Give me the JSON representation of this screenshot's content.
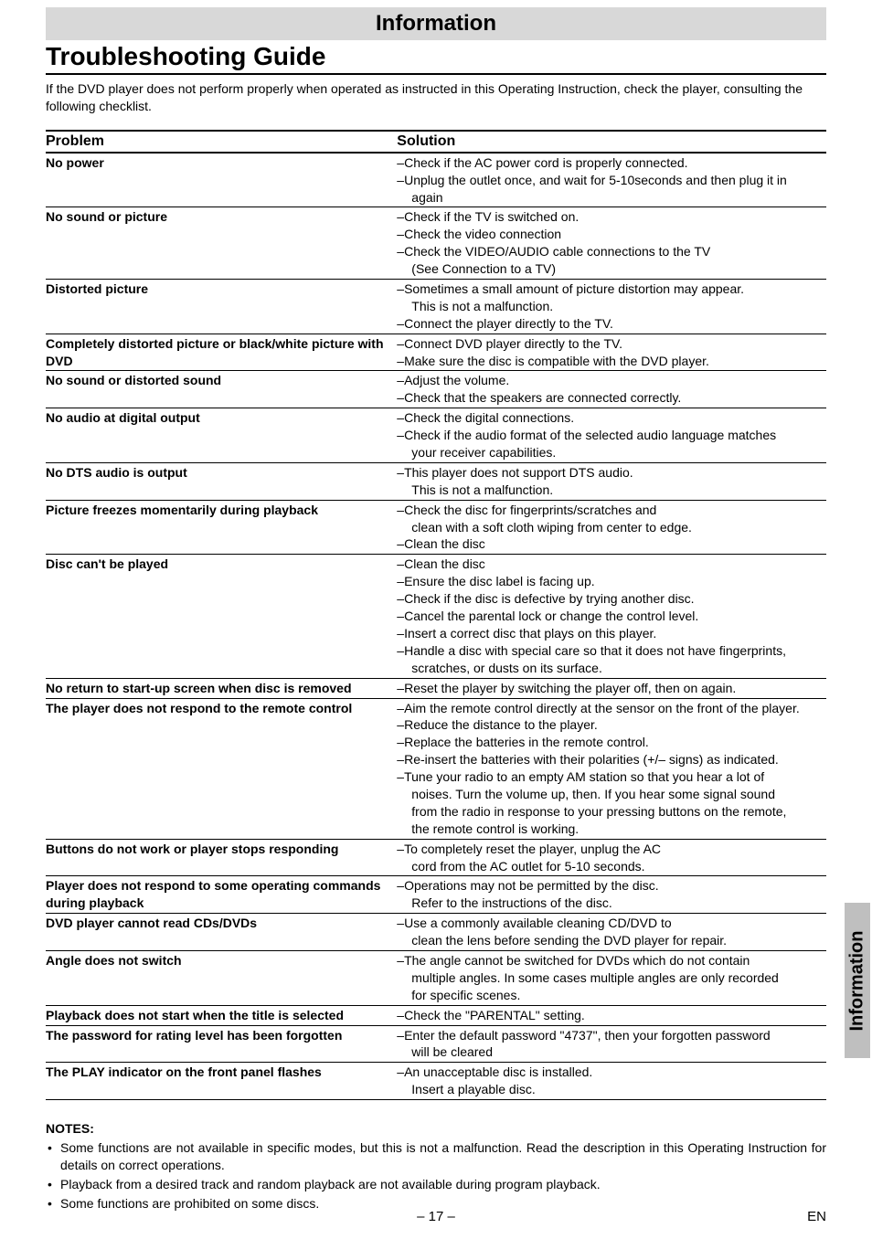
{
  "header_bar": "Information",
  "title": "Troubleshooting Guide",
  "intro": "If the DVD player does not perform properly when operated as instructed in this Operating Instruction, check the player, consulting the following checklist.",
  "table": {
    "col_problem": "Problem",
    "col_solution": "Solution",
    "rows": [
      {
        "problem": "No power",
        "solutions": [
          "–Check if the AC power cord is properly connected.",
          "–Unplug the outlet once, and wait for 5-10seconds and then plug it in",
          "  again"
        ]
      },
      {
        "problem": "No sound or picture",
        "solutions": [
          "–Check if the TV is switched on.",
          "–Check the video connection",
          "–Check the VIDEO/AUDIO cable connections to the TV",
          "  (See Connection to a TV)"
        ]
      },
      {
        "problem": "Distorted picture",
        "solutions": [
          "–Sometimes a small amount of picture distortion may appear.",
          "  This is not a malfunction.",
          "–Connect the player directly to the TV."
        ]
      },
      {
        "problem": "Completely distorted picture or black/white picture with DVD",
        "solutions": [
          "–Connect DVD player directly to the TV.",
          "–Make sure the disc is compatible with the DVD player."
        ]
      },
      {
        "problem": "No sound or distorted sound",
        "solutions": [
          "–Adjust the volume.",
          "–Check that the speakers are connected correctly."
        ]
      },
      {
        "problem": "No audio at digital output",
        "solutions": [
          "–Check the digital connections.",
          "–Check if the audio format of the selected audio language matches",
          "  your receiver capabilities."
        ]
      },
      {
        "problem": "No DTS audio is output",
        "solutions": [
          "–This player does not support DTS audio.",
          "  This is not a malfunction."
        ]
      },
      {
        "problem": "Picture freezes momentarily during playback",
        "solutions": [
          "–Check the disc for fingerprints/scratches and",
          "  clean with a soft cloth wiping from center to edge.",
          "–Clean the disc"
        ]
      },
      {
        "problem": "Disc can't be played",
        "solutions": [
          "–Clean the disc",
          "–Ensure the disc label is facing up.",
          "–Check if the disc is defective by trying another disc.",
          "–Cancel the parental lock or change the control level.",
          "–Insert a correct disc that plays on this player.",
          "–Handle a disc with special care so that it does not have fingerprints,",
          "  scratches, or dusts on its surface."
        ]
      },
      {
        "problem": "No return to start-up screen when disc is removed",
        "solutions": [
          "–Reset the player by switching the player off, then on again."
        ]
      },
      {
        "problem": "The player does not respond to the remote control",
        "solutions": [
          "–Aim the remote control directly at the sensor on the front of the player.",
          "–Reduce the distance to the player.",
          "–Replace the batteries in the remote control.",
          "–Re-insert the batteries with their polarities (+/– signs) as indicated.",
          "–Tune your radio to an empty AM station so that you hear a lot of",
          "  noises. Turn the volume up, then. If you hear some signal sound",
          "  from the radio in response to your pressing buttons on the remote,",
          "  the remote control is working."
        ]
      },
      {
        "problem": "Buttons do not work or player stops responding",
        "solutions": [
          "–To completely reset the player, unplug the AC",
          "  cord from the AC outlet for 5-10 seconds."
        ]
      },
      {
        "problem": "Player does not respond to some operating commands during playback",
        "solutions": [
          "–Operations may not be permitted by the disc.",
          "  Refer to the instructions of the disc."
        ]
      },
      {
        "problem": "DVD player cannot read CDs/DVDs",
        "solutions": [
          "–Use a commonly available cleaning CD/DVD to",
          "  clean the lens before sending the DVD player for repair."
        ]
      },
      {
        "problem": "Angle does not switch",
        "solutions": [
          "–The angle cannot be switched for DVDs which do not contain",
          "  multiple angles. In some cases multiple angles are only recorded",
          "  for specific scenes."
        ]
      },
      {
        "problem": "Playback does not start when the title is selected",
        "solutions": [
          "–Check the \"PARENTAL\" setting."
        ]
      },
      {
        "problem": "The password for rating level has been forgotten",
        "solutions": [
          "–Enter the default password \"4737\", then your forgotten password",
          "  will be cleared"
        ]
      },
      {
        "problem": "The PLAY indicator on the front panel flashes",
        "solutions": [
          "–An unacceptable disc is installed.",
          "  Insert a playable disc."
        ]
      }
    ]
  },
  "notes": {
    "title": "NOTES:",
    "items": [
      "Some functions are not available in specific modes, but this is not a malfunction. Read the description in this Operating Instruction for details on correct operations.",
      "Playback from a desired track and random playback are not available during program playback.",
      "Some functions are prohibited on some discs."
    ]
  },
  "side_tab": "Information",
  "footer": {
    "page": "– 17 –",
    "lang": "EN"
  },
  "colors": {
    "header_bg": "#d8d8d8",
    "side_tab_bg": "#bfbfbf",
    "text": "#000000",
    "page_bg": "#ffffff",
    "rule": "#000000"
  },
  "typography": {
    "body_family": "Arial, Helvetica, sans-serif",
    "body_size_pt": 10.5,
    "header_size_pt": 18,
    "title_size_pt": 21,
    "table_header_size_pt": 12
  }
}
